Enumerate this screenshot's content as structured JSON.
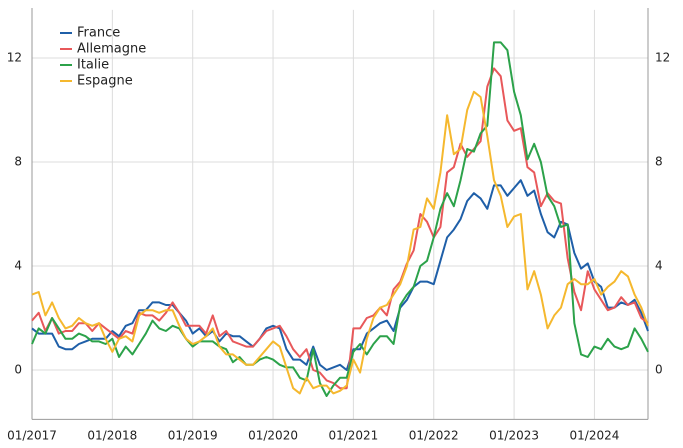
{
  "chart_data": {
    "type": "line",
    "categories": [
      "01/2017",
      null,
      null,
      null,
      null,
      null,
      null,
      null,
      null,
      null,
      null,
      null,
      "01/2018",
      null,
      null,
      null,
      null,
      null,
      null,
      null,
      null,
      null,
      null,
      null,
      "01/2019",
      null,
      null,
      null,
      null,
      null,
      null,
      null,
      null,
      null,
      null,
      null,
      "01/2020",
      null,
      null,
      null,
      null,
      null,
      null,
      null,
      null,
      null,
      null,
      null,
      "01/2021",
      null,
      null,
      null,
      null,
      null,
      null,
      null,
      null,
      null,
      null,
      null,
      "01/2022",
      null,
      null,
      null,
      null,
      null,
      null,
      null,
      null,
      null,
      null,
      null,
      "01/2023",
      null,
      null,
      null,
      null,
      null,
      null,
      null,
      null,
      null,
      null,
      null,
      "01/2024",
      null,
      null,
      null,
      null,
      null,
      null,
      null,
      null
    ],
    "series": [
      {
        "name": "France",
        "color": "#1f5fa8",
        "values": [
          1.6,
          1.4,
          1.4,
          1.4,
          0.9,
          0.8,
          0.8,
          1.0,
          1.1,
          1.2,
          1.2,
          1.2,
          1.5,
          1.3,
          1.7,
          1.8,
          2.3,
          2.3,
          2.6,
          2.6,
          2.5,
          2.5,
          2.2,
          1.9,
          1.4,
          1.6,
          1.3,
          1.5,
          1.1,
          1.4,
          1.3,
          1.3,
          1.1,
          0.9,
          1.2,
          1.6,
          1.7,
          1.6,
          0.8,
          0.4,
          0.4,
          0.2,
          0.9,
          0.2,
          0.0,
          0.1,
          0.2,
          0.0,
          0.8,
          0.8,
          1.4,
          1.6,
          1.8,
          1.9,
          1.5,
          2.4,
          2.7,
          3.2,
          3.4,
          3.4,
          3.3,
          4.2,
          5.1,
          5.4,
          5.8,
          6.5,
          6.8,
          6.6,
          6.2,
          7.1,
          7.1,
          6.7,
          7.0,
          7.3,
          6.7,
          6.9,
          6.0,
          5.3,
          5.1,
          5.7,
          5.6,
          4.5,
          3.9,
          4.1,
          3.4,
          3.2,
          2.4,
          2.4,
          2.6,
          2.5,
          2.7,
          2.2,
          1.5
        ]
      },
      {
        "name": "Allemagne",
        "color": "#e8585a",
        "values": [
          1.9,
          2.2,
          1.5,
          2.0,
          1.4,
          1.5,
          1.5,
          1.8,
          1.8,
          1.5,
          1.8,
          1.6,
          1.4,
          1.2,
          1.5,
          1.4,
          2.2,
          2.1,
          2.1,
          1.9,
          2.2,
          2.6,
          2.2,
          1.7,
          1.7,
          1.7,
          1.4,
          2.1,
          1.3,
          1.5,
          1.1,
          1.0,
          0.9,
          0.9,
          1.2,
          1.5,
          1.6,
          1.7,
          1.3,
          0.8,
          0.5,
          0.8,
          0.0,
          -0.1,
          -0.4,
          -0.5,
          -0.7,
          -0.7,
          1.6,
          1.6,
          2.0,
          2.1,
          2.4,
          2.1,
          3.1,
          3.4,
          4.1,
          4.6,
          6.0,
          5.7,
          5.1,
          5.5,
          7.6,
          7.8,
          8.7,
          8.2,
          8.5,
          8.8,
          10.9,
          11.6,
          11.3,
          9.6,
          9.2,
          9.3,
          7.8,
          7.6,
          6.3,
          6.8,
          6.5,
          6.4,
          4.3,
          3.0,
          2.3,
          3.8,
          3.1,
          2.7,
          2.3,
          2.4,
          2.8,
          2.5,
          2.6,
          2.0,
          1.8
        ]
      },
      {
        "name": "Italie",
        "color": "#2ca24a",
        "values": [
          1.0,
          1.6,
          1.4,
          2.0,
          1.6,
          1.2,
          1.2,
          1.4,
          1.3,
          1.1,
          1.1,
          1.0,
          1.2,
          0.5,
          0.9,
          0.6,
          1.0,
          1.4,
          1.9,
          1.6,
          1.5,
          1.7,
          1.6,
          1.2,
          0.9,
          1.1,
          1.1,
          1.1,
          0.9,
          0.8,
          0.3,
          0.5,
          0.2,
          0.2,
          0.4,
          0.5,
          0.4,
          0.2,
          0.1,
          0.1,
          -0.3,
          -0.4,
          0.8,
          -0.5,
          -1.0,
          -0.6,
          -0.3,
          -0.3,
          0.7,
          1.0,
          0.6,
          1.0,
          1.3,
          1.3,
          1.0,
          2.5,
          2.9,
          3.2,
          4.0,
          4.2,
          5.1,
          6.2,
          6.8,
          6.3,
          7.3,
          8.5,
          8.4,
          9.1,
          9.4,
          12.6,
          12.6,
          12.3,
          10.7,
          9.8,
          8.1,
          8.7,
          8.0,
          6.7,
          6.3,
          5.5,
          5.6,
          1.8,
          0.6,
          0.5,
          0.9,
          0.8,
          1.2,
          0.9,
          0.8,
          0.9,
          1.6,
          1.2,
          0.7
        ]
      },
      {
        "name": "Espagne",
        "color": "#f5b82e",
        "values": [
          2.9,
          3.0,
          2.1,
          2.6,
          2.0,
          1.6,
          1.7,
          2.0,
          1.8,
          1.7,
          1.8,
          1.2,
          0.7,
          1.2,
          1.3,
          1.1,
          2.1,
          2.3,
          2.3,
          2.2,
          2.3,
          2.3,
          1.7,
          1.2,
          1.0,
          1.1,
          1.3,
          1.6,
          0.9,
          0.6,
          0.6,
          0.4,
          0.2,
          0.2,
          0.5,
          0.8,
          1.1,
          0.9,
          0.1,
          -0.7,
          -0.9,
          -0.3,
          -0.7,
          -0.6,
          -0.6,
          -0.9,
          -0.8,
          -0.6,
          0.4,
          -0.1,
          1.2,
          2.0,
          2.4,
          2.5,
          2.9,
          3.3,
          4.0,
          5.4,
          5.5,
          6.6,
          6.2,
          7.6,
          9.8,
          8.3,
          8.5,
          10.0,
          10.7,
          10.5,
          9.0,
          7.3,
          6.7,
          5.5,
          5.9,
          6.0,
          3.1,
          3.8,
          2.9,
          1.6,
          2.1,
          2.4,
          3.3,
          3.5,
          3.3,
          3.3,
          3.5,
          2.9,
          3.2,
          3.4,
          3.8,
          3.6,
          2.9,
          2.4,
          1.7
        ]
      }
    ],
    "ylim": [
      -1.9,
      13.85
    ],
    "yticks": [
      0,
      4,
      8,
      12
    ],
    "y2lim": [
      -1.9,
      13.85
    ],
    "y2ticks": [
      0,
      4,
      8,
      12
    ],
    "grid": true,
    "legend": "upper left"
  }
}
